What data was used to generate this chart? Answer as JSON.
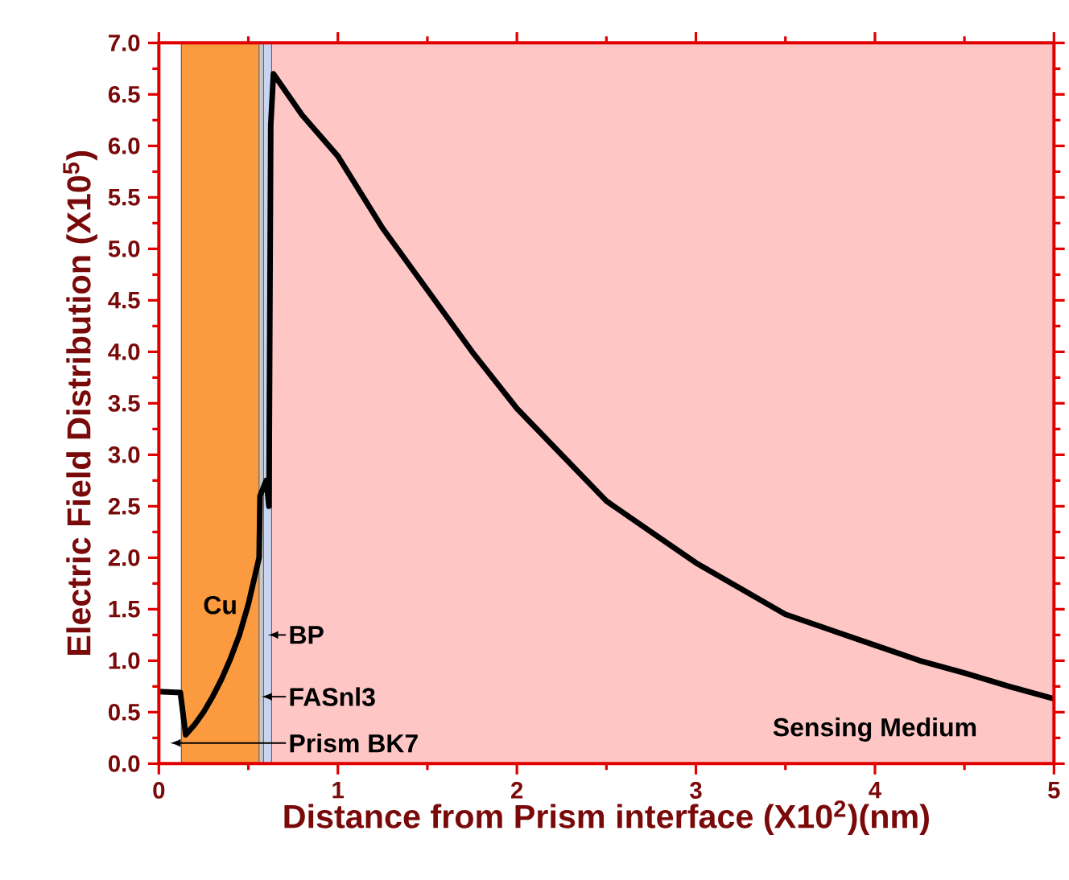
{
  "chart_data": {
    "type": "line",
    "xlabel": "Distance from Prism interface (X10$^{2}$)(nm)",
    "ylabel": "Electric Field Distribution (X10$^{5}$)",
    "xlim": [
      0,
      5
    ],
    "ylim": [
      0,
      7
    ],
    "xticks": [
      0,
      1,
      2,
      3,
      4,
      5
    ],
    "yticks": [
      {
        "value": 0,
        "label": "0.0"
      },
      {
        "value": 0.5,
        "label": "0.5"
      },
      {
        "value": 1,
        "label": "1.0"
      },
      {
        "value": 1.5,
        "label": "1.5"
      },
      {
        "value": 2,
        "label": "2.0"
      },
      {
        "value": 2.5,
        "label": "2.5"
      },
      {
        "value": 3,
        "label": "3.0"
      },
      {
        "value": 3.5,
        "label": "3.5"
      },
      {
        "value": 4,
        "label": "4.0"
      },
      {
        "value": 4.5,
        "label": "4.5"
      },
      {
        "value": 5,
        "label": "5.0"
      },
      {
        "value": 5.5,
        "label": "5.5"
      },
      {
        "value": 6,
        "label": "6.0"
      },
      {
        "value": 6.5,
        "label": "6.5"
      },
      {
        "value": 7,
        "label": "7.0"
      }
    ],
    "series": [
      {
        "color": "#000000",
        "x": [
          0,
          0.12,
          0.15,
          0.2,
          0.25,
          0.3,
          0.35,
          0.4,
          0.45,
          0.5,
          0.54,
          0.56,
          0.565,
          0.6,
          0.615,
          0.625,
          0.64,
          0.7,
          0.8,
          1.0,
          1.25,
          1.5,
          1.75,
          2.0,
          2.25,
          2.5,
          2.75,
          3.0,
          3.25,
          3.5,
          3.75,
          4.0,
          4.25,
          4.5,
          4.75,
          5.0
        ],
        "values": [
          0.7,
          0.69,
          0.28,
          0.38,
          0.5,
          0.65,
          0.82,
          1.02,
          1.25,
          1.55,
          1.85,
          2.0,
          2.6,
          2.75,
          2.5,
          6.2,
          6.7,
          6.55,
          6.3,
          5.9,
          5.2,
          4.6,
          4.0,
          3.45,
          3.0,
          2.55,
          2.25,
          1.95,
          1.7,
          1.45,
          1.3,
          1.15,
          1.0,
          0.88,
          0.75,
          0.63
        ]
      }
    ],
    "bands": [
      {
        "axis": "x",
        "from": 0,
        "to": 0.126,
        "label": "Prism BK7",
        "color": "#ffffff"
      },
      {
        "axis": "x",
        "from": 0.126,
        "to": 0.56,
        "label": "Cu",
        "color": "#fb9a3e"
      },
      {
        "axis": "x",
        "from": 0.56,
        "to": 0.585,
        "label": "FASnl3",
        "color": "#c8c8c8"
      },
      {
        "axis": "x",
        "from": 0.585,
        "to": 0.63,
        "label": "BP",
        "color": "#c8d4f0"
      },
      {
        "axis": "x",
        "from": 0.63,
        "to": 5,
        "label": "Sensing Medium",
        "color": "#ffc6c6"
      }
    ],
    "marker": "none",
    "line_style": "solid",
    "grid": false
  }
}
